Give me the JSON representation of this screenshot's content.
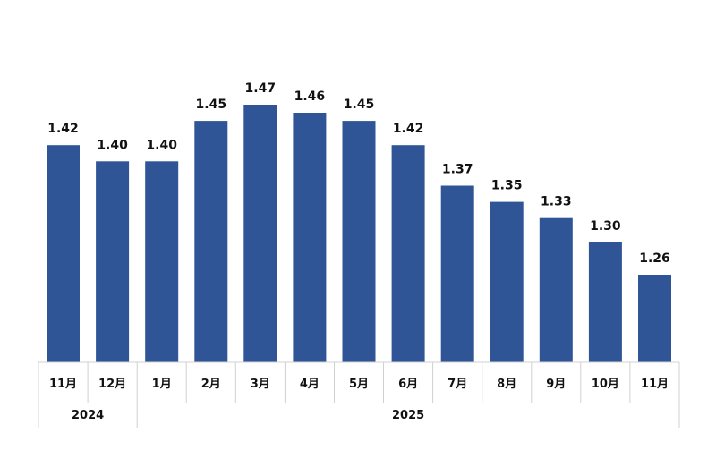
{
  "chart_data": {
    "type": "bar",
    "title": "",
    "xlabel": "",
    "ylabel": "",
    "categories": [
      "11月",
      "12月",
      "1月",
      "2月",
      "3月",
      "4月",
      "5月",
      "6月",
      "7月",
      "8月",
      "9月",
      "10月",
      "11月"
    ],
    "values": [
      1.42,
      1.4,
      1.4,
      1.45,
      1.47,
      1.46,
      1.45,
      1.42,
      1.37,
      1.35,
      1.33,
      1.3,
      1.26
    ],
    "value_labels": [
      "1.42",
      "1.40",
      "1.40",
      "1.45",
      "1.47",
      "1.46",
      "1.45",
      "1.42",
      "1.37",
      "1.35",
      "1.33",
      "1.30",
      "1.26"
    ],
    "year_groups": [
      {
        "label": "2024",
        "count": 2
      },
      {
        "label": "2025",
        "count": 11
      }
    ],
    "ylim": [
      1.0,
      1.5
    ],
    "grid": false,
    "legend": "none",
    "bar_color": "#2F5597"
  }
}
